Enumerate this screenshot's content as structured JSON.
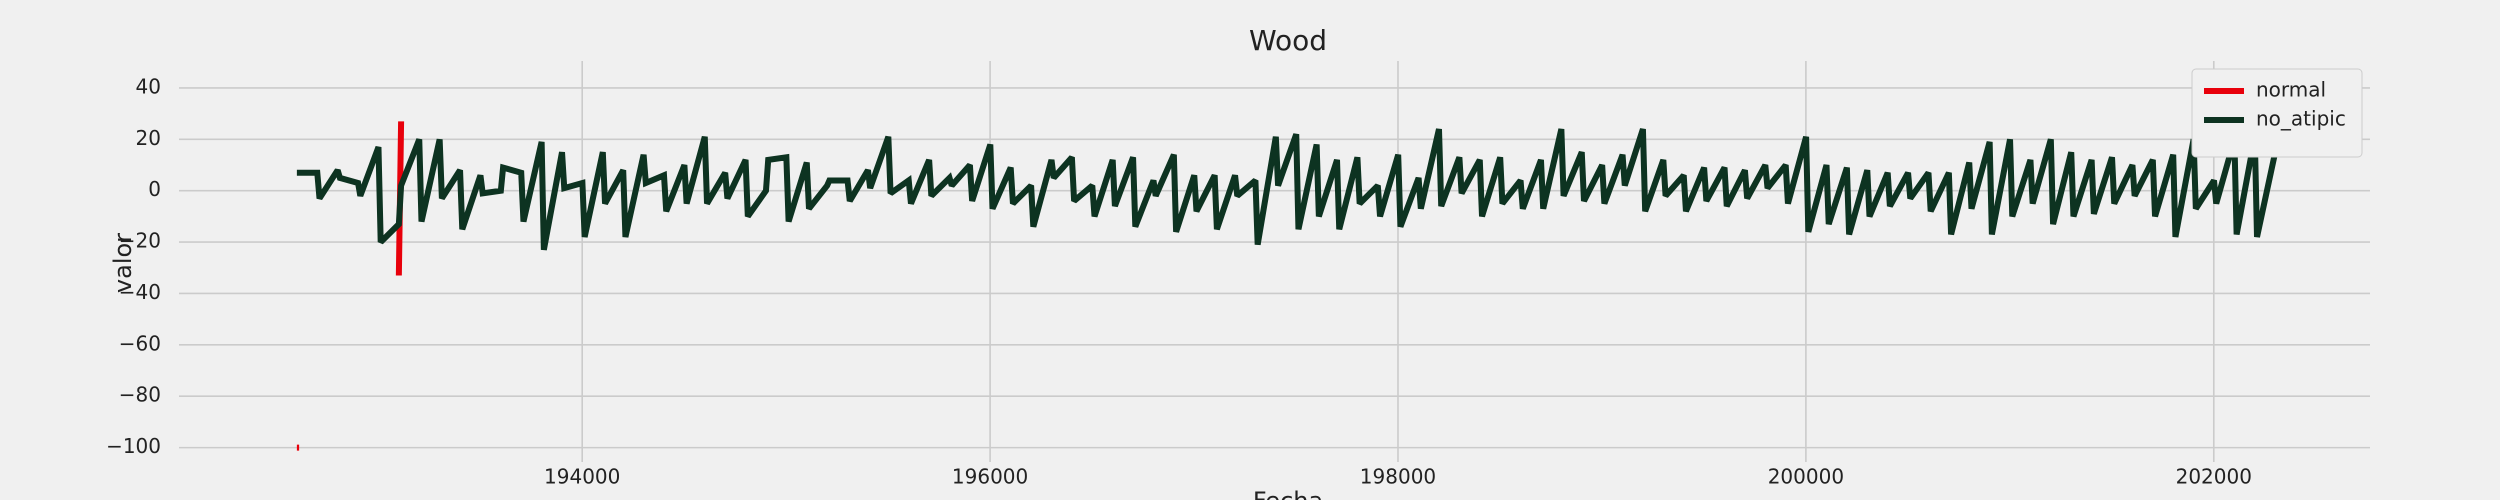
{
  "chart_data": {
    "type": "line",
    "title": "Wood",
    "x_label": "Fecha",
    "y_label": "valor",
    "xlim": [
      192023,
      202766
    ],
    "xticks": [
      194000,
      196000,
      198000,
      200000,
      202000
    ],
    "ylim": [
      -105.6,
      50.5
    ],
    "yticks": [
      {
        "value": -100,
        "label": "−100"
      },
      {
        "value": -80,
        "label": "−80"
      },
      {
        "value": -60,
        "label": "−60"
      },
      {
        "value": -40,
        "label": "−40"
      },
      {
        "value": -20,
        "label": "−20"
      },
      0,
      20,
      40
    ],
    "grid": true,
    "legend": "upper right",
    "series": [
      {
        "name": "normal",
        "color": "#e8000b",
        "x": [
          192601,
          192612,
          193001,
          193101,
          193112
        ],
        "values": [
          -100,
          -100,
          null,
          -33,
          27
        ]
      },
      {
        "name": "no_atipic",
        "color": "#0d3321",
        "x": [
          192601,
          192612,
          192701,
          192712,
          192801,
          192812,
          192901,
          192912,
          193001,
          193012,
          193101,
          193112,
          193201,
          193212,
          193301,
          193312,
          193401,
          193412,
          193501,
          193512,
          193601,
          193612,
          193701,
          193712,
          193801,
          193812,
          193901,
          193912,
          194001,
          194012,
          194101,
          194112,
          194201,
          194212,
          194301,
          194312,
          194401,
          194412,
          194501,
          194512,
          194601,
          194612,
          194701,
          194712,
          194801,
          194812,
          194901,
          194912,
          195001,
          195012,
          195101,
          195112,
          195201,
          195212,
          195301,
          195312,
          195401,
          195412,
          195501,
          195512,
          195601,
          195612,
          195701,
          195712,
          195801,
          195812,
          195901,
          195912,
          196001,
          196012,
          196101,
          196112,
          196201,
          196212,
          196301,
          196312,
          196401,
          196412,
          196501,
          196512,
          196601,
          196612,
          196701,
          196712,
          196801,
          196812,
          196901,
          196912,
          197001,
          197012,
          197101,
          197112,
          197201,
          197212,
          197301,
          197312,
          197401,
          197412,
          197501,
          197512,
          197601,
          197612,
          197701,
          197712,
          197801,
          197812,
          197901,
          197912,
          198001,
          198012,
          198101,
          198112,
          198201,
          198212,
          198301,
          198312,
          198401,
          198412,
          198501,
          198512,
          198601,
          198612,
          198701,
          198712,
          198801,
          198812,
          198901,
          198912,
          199001,
          199012,
          199101,
          199112,
          199201,
          199212,
          199301,
          199312,
          199401,
          199412,
          199501,
          199512,
          199601,
          199612,
          199701,
          199712,
          199801,
          199812,
          199901,
          199912,
          200001,
          200012,
          200101,
          200112,
          200201,
          200212,
          200301,
          200312,
          200401,
          200412,
          200501,
          200512,
          200601,
          200612,
          200701,
          200712,
          200801,
          200812,
          200901,
          200912,
          201001,
          201012,
          201101,
          201112,
          201201,
          201212,
          201301,
          201312,
          201401,
          201412,
          201501,
          201512,
          201601,
          201612,
          201701,
          201712,
          201801,
          201812,
          201901,
          201912,
          202001,
          202012,
          202101,
          202112,
          202201,
          202212,
          202304
        ],
        "values": [
          7,
          7,
          7,
          -3,
          8,
          5,
          3,
          -2,
          17,
          -20,
          -13,
          2,
          20,
          -12,
          20,
          -3,
          8,
          -15,
          6,
          -1,
          0,
          9,
          7,
          -12,
          19,
          -23,
          15,
          1,
          3,
          -18,
          15,
          -5,
          8,
          -18,
          14,
          3,
          6,
          -8,
          10,
          -5,
          21,
          -5,
          7,
          -3,
          12,
          -10,
          0,
          12,
          13,
          -12,
          11,
          -7,
          2,
          4,
          4,
          -4,
          8,
          1,
          21,
          -1,
          4,
          -5,
          12,
          -2,
          5,
          2,
          10,
          -4,
          18,
          -7,
          9,
          -5,
          2,
          -14,
          12,
          5,
          13,
          -4,
          2,
          -10,
          12,
          -6,
          13,
          -14,
          4,
          -2,
          14,
          -16,
          6,
          -8,
          6,
          -15,
          6,
          -2,
          4,
          -21,
          21,
          2,
          22,
          -15,
          18,
          -10,
          12,
          -15,
          13,
          -5,
          2,
          -10,
          14,
          -14,
          5,
          -7,
          24,
          -6,
          13,
          -1,
          12,
          -10,
          13,
          -5,
          4,
          -7,
          12,
          -7,
          24,
          -2,
          15,
          -4,
          10,
          -5,
          14,
          2,
          24,
          -8,
          12,
          -2,
          6,
          -8,
          9,
          -4,
          9,
          -6,
          8,
          -3,
          10,
          1,
          10,
          -5,
          21,
          -16,
          10,
          -13,
          9,
          -17,
          8,
          -10,
          7,
          -6,
          7,
          -3,
          7,
          -8,
          7,
          -17,
          11,
          -7,
          19,
          -17,
          20,
          -10,
          12,
          -5,
          20,
          -13,
          15,
          -10,
          12,
          -9,
          13,
          -5,
          10,
          -2,
          12,
          -10,
          14,
          -18,
          20,
          -7,
          4,
          -5,
          20,
          -17,
          21,
          -18,
          16
        ]
      }
    ]
  }
}
